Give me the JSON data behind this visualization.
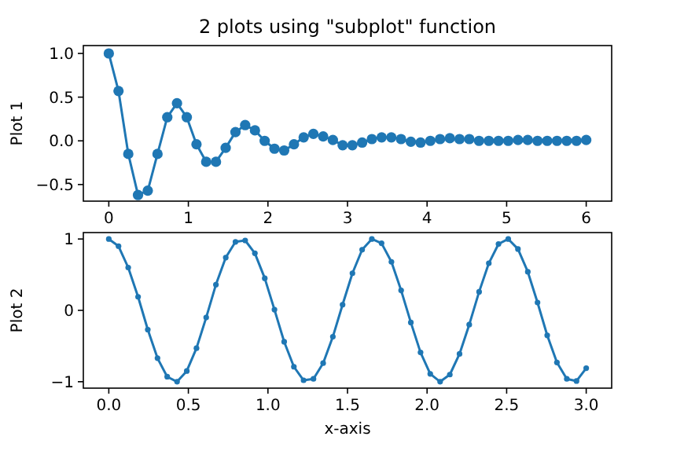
{
  "chart_data": [
    {
      "type": "line",
      "title": "2 plots using \"subplot\" function",
      "ylabel": "Plot 1",
      "marker": "circle",
      "line_style": "solid",
      "grid": false,
      "x": [
        0,
        0.122,
        0.245,
        0.367,
        0.49,
        0.612,
        0.735,
        0.857,
        0.98,
        1.102,
        1.224,
        1.347,
        1.469,
        1.592,
        1.714,
        1.837,
        1.959,
        2.082,
        2.204,
        2.327,
        2.449,
        2.571,
        2.694,
        2.816,
        2.939,
        3.061,
        3.184,
        3.306,
        3.429,
        3.551,
        3.673,
        3.796,
        3.918,
        4.041,
        4.163,
        4.286,
        4.408,
        4.531,
        4.653,
        4.776,
        4.898,
        5.02,
        5.143,
        5.265,
        5.388,
        5.51,
        5.633,
        5.755,
        5.878,
        6
      ],
      "series": [
        {
          "color": "#1f77b4",
          "values": [
            1.0,
            0.57,
            -0.15,
            -0.62,
            -0.57,
            -0.15,
            0.27,
            0.43,
            0.27,
            -0.04,
            -0.24,
            -0.24,
            -0.08,
            0.1,
            0.18,
            0.12,
            0.0,
            -0.09,
            -0.11,
            -0.04,
            0.04,
            0.08,
            0.05,
            0.01,
            -0.05,
            -0.05,
            -0.02,
            0.02,
            0.04,
            0.04,
            0.02,
            -0.01,
            -0.02,
            0.0,
            0.02,
            0.03,
            0.02,
            0.02,
            0.0,
            0.0,
            0.0,
            0.0,
            0.01,
            0.01,
            0.0,
            0.0,
            0.0,
            0.0,
            0.0,
            0.01
          ]
        }
      ],
      "xlim": [
        -0.32,
        6.32
      ],
      "xticks": [
        0,
        1,
        2,
        3,
        4,
        5,
        6
      ],
      "ylim": [
        -0.69,
        1.09
      ],
      "yticks": [
        {
          "value": -0.5,
          "label": "−0.5"
        },
        {
          "value": 0,
          "label": "0.0"
        },
        {
          "value": 0.5,
          "label": "0.5"
        },
        {
          "value": 1,
          "label": "1.0"
        }
      ]
    },
    {
      "type": "line",
      "xlabel": "x-axis",
      "ylabel": "Plot 2",
      "marker": "circle",
      "line_style": "solid",
      "grid": false,
      "x": [
        0,
        0.061,
        0.122,
        0.184,
        0.245,
        0.306,
        0.367,
        0.429,
        0.49,
        0.551,
        0.612,
        0.673,
        0.735,
        0.796,
        0.857,
        0.918,
        0.98,
        1.041,
        1.102,
        1.163,
        1.224,
        1.286,
        1.347,
        1.408,
        1.469,
        1.531,
        1.592,
        1.653,
        1.714,
        1.776,
        1.837,
        1.898,
        1.959,
        2.02,
        2.082,
        2.143,
        2.204,
        2.265,
        2.327,
        2.388,
        2.449,
        2.51,
        2.571,
        2.633,
        2.694,
        2.755,
        2.816,
        2.878,
        2.939,
        3
      ],
      "series": [
        {
          "color": "#1f77b4",
          "values": [
            1,
            0.9,
            0.6,
            0.19,
            -0.27,
            -0.67,
            -0.93,
            -1.0,
            -0.85,
            -0.53,
            -0.1,
            0.36,
            0.74,
            0.96,
            0.98,
            0.8,
            0.45,
            0.01,
            -0.44,
            -0.79,
            -0.98,
            -0.96,
            -0.74,
            -0.37,
            0.08,
            0.52,
            0.85,
            1.0,
            0.94,
            0.68,
            0.28,
            -0.17,
            -0.59,
            -0.89,
            -1.0,
            -0.9,
            -0.61,
            -0.2,
            0.26,
            0.66,
            0.93,
            1.0,
            0.86,
            0.54,
            0.11,
            -0.35,
            -0.73,
            -0.96,
            -0.99,
            -0.81
          ]
        }
      ],
      "xlim": [
        -0.16,
        3.16
      ],
      "xticks": [
        {
          "value": 0,
          "label": "0.0"
        },
        {
          "value": 0.5,
          "label": "0.5"
        },
        {
          "value": 1,
          "label": "1.0"
        },
        {
          "value": 1.5,
          "label": "1.5"
        },
        {
          "value": 2,
          "label": "2.0"
        },
        {
          "value": 2.5,
          "label": "2.5"
        },
        {
          "value": 3,
          "label": "3.0"
        }
      ],
      "ylim": [
        -1.09,
        1.09
      ],
      "yticks": [
        {
          "value": -1,
          "label": "−1"
        },
        0,
        1
      ]
    }
  ]
}
